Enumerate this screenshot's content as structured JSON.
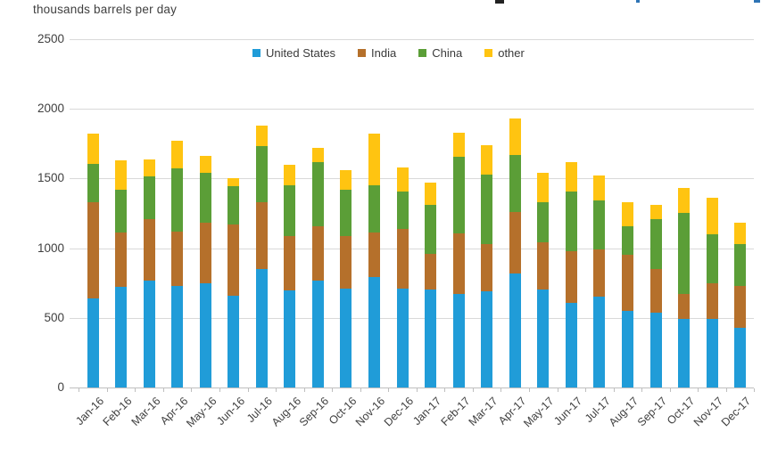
{
  "header": {
    "units_label": "thousands barrels per day"
  },
  "colors": {
    "background": "#ffffff",
    "grid": "#d9d9d9",
    "axis": "#bfbfbf",
    "text": "#3f3f3f",
    "united_states": "#209cd8",
    "india": "#b5702b",
    "china": "#5b9e37",
    "other": "#ffc411"
  },
  "chart_data": {
    "type": "bar",
    "stacked": true,
    "ylabel": "thousands barrels per day",
    "xlabel": "",
    "ylim": [
      0,
      2500
    ],
    "yticks": [
      0,
      500,
      1000,
      1500,
      2000,
      2500
    ],
    "grid": true,
    "legend_position": "top-center",
    "categories": [
      "Jan-16",
      "Feb-16",
      "Mar-16",
      "Apr-16",
      "May-16",
      "Jun-16",
      "Jul-16",
      "Aug-16",
      "Sep-16",
      "Oct-16",
      "Nov-16",
      "Dec-16",
      "Jan-17",
      "Feb-17",
      "Mar-17",
      "Apr-17",
      "May-17",
      "Jun-17",
      "Jul-17",
      "Aug-17",
      "Sep-17",
      "Oct-17",
      "Nov-17",
      "Dec-17"
    ],
    "series": [
      {
        "name": "United States",
        "color": "#209cd8",
        "values": [
          640,
          720,
          770,
          730,
          750,
          660,
          850,
          700,
          770,
          710,
          790,
          710,
          700,
          670,
          690,
          820,
          700,
          610,
          650,
          550,
          540,
          490,
          490,
          430
        ]
      },
      {
        "name": "India",
        "color": "#b5702b",
        "values": [
          690,
          390,
          440,
          390,
          430,
          510,
          480,
          390,
          390,
          380,
          320,
          430,
          260,
          440,
          340,
          440,
          340,
          370,
          340,
          400,
          310,
          180,
          260,
          300
        ]
      },
      {
        "name": "China",
        "color": "#5b9e37",
        "values": [
          270,
          310,
          310,
          450,
          360,
          270,
          400,
          360,
          460,
          330,
          340,
          270,
          350,
          550,
          500,
          410,
          290,
          430,
          350,
          210,
          360,
          580,
          350,
          300
        ]
      },
      {
        "name": "other",
        "color": "#ffc411",
        "values": [
          220,
          210,
          120,
          200,
          120,
          60,
          150,
          150,
          100,
          140,
          370,
          170,
          160,
          170,
          210,
          260,
          210,
          210,
          180,
          170,
          100,
          180,
          260,
          150
        ]
      }
    ]
  }
}
